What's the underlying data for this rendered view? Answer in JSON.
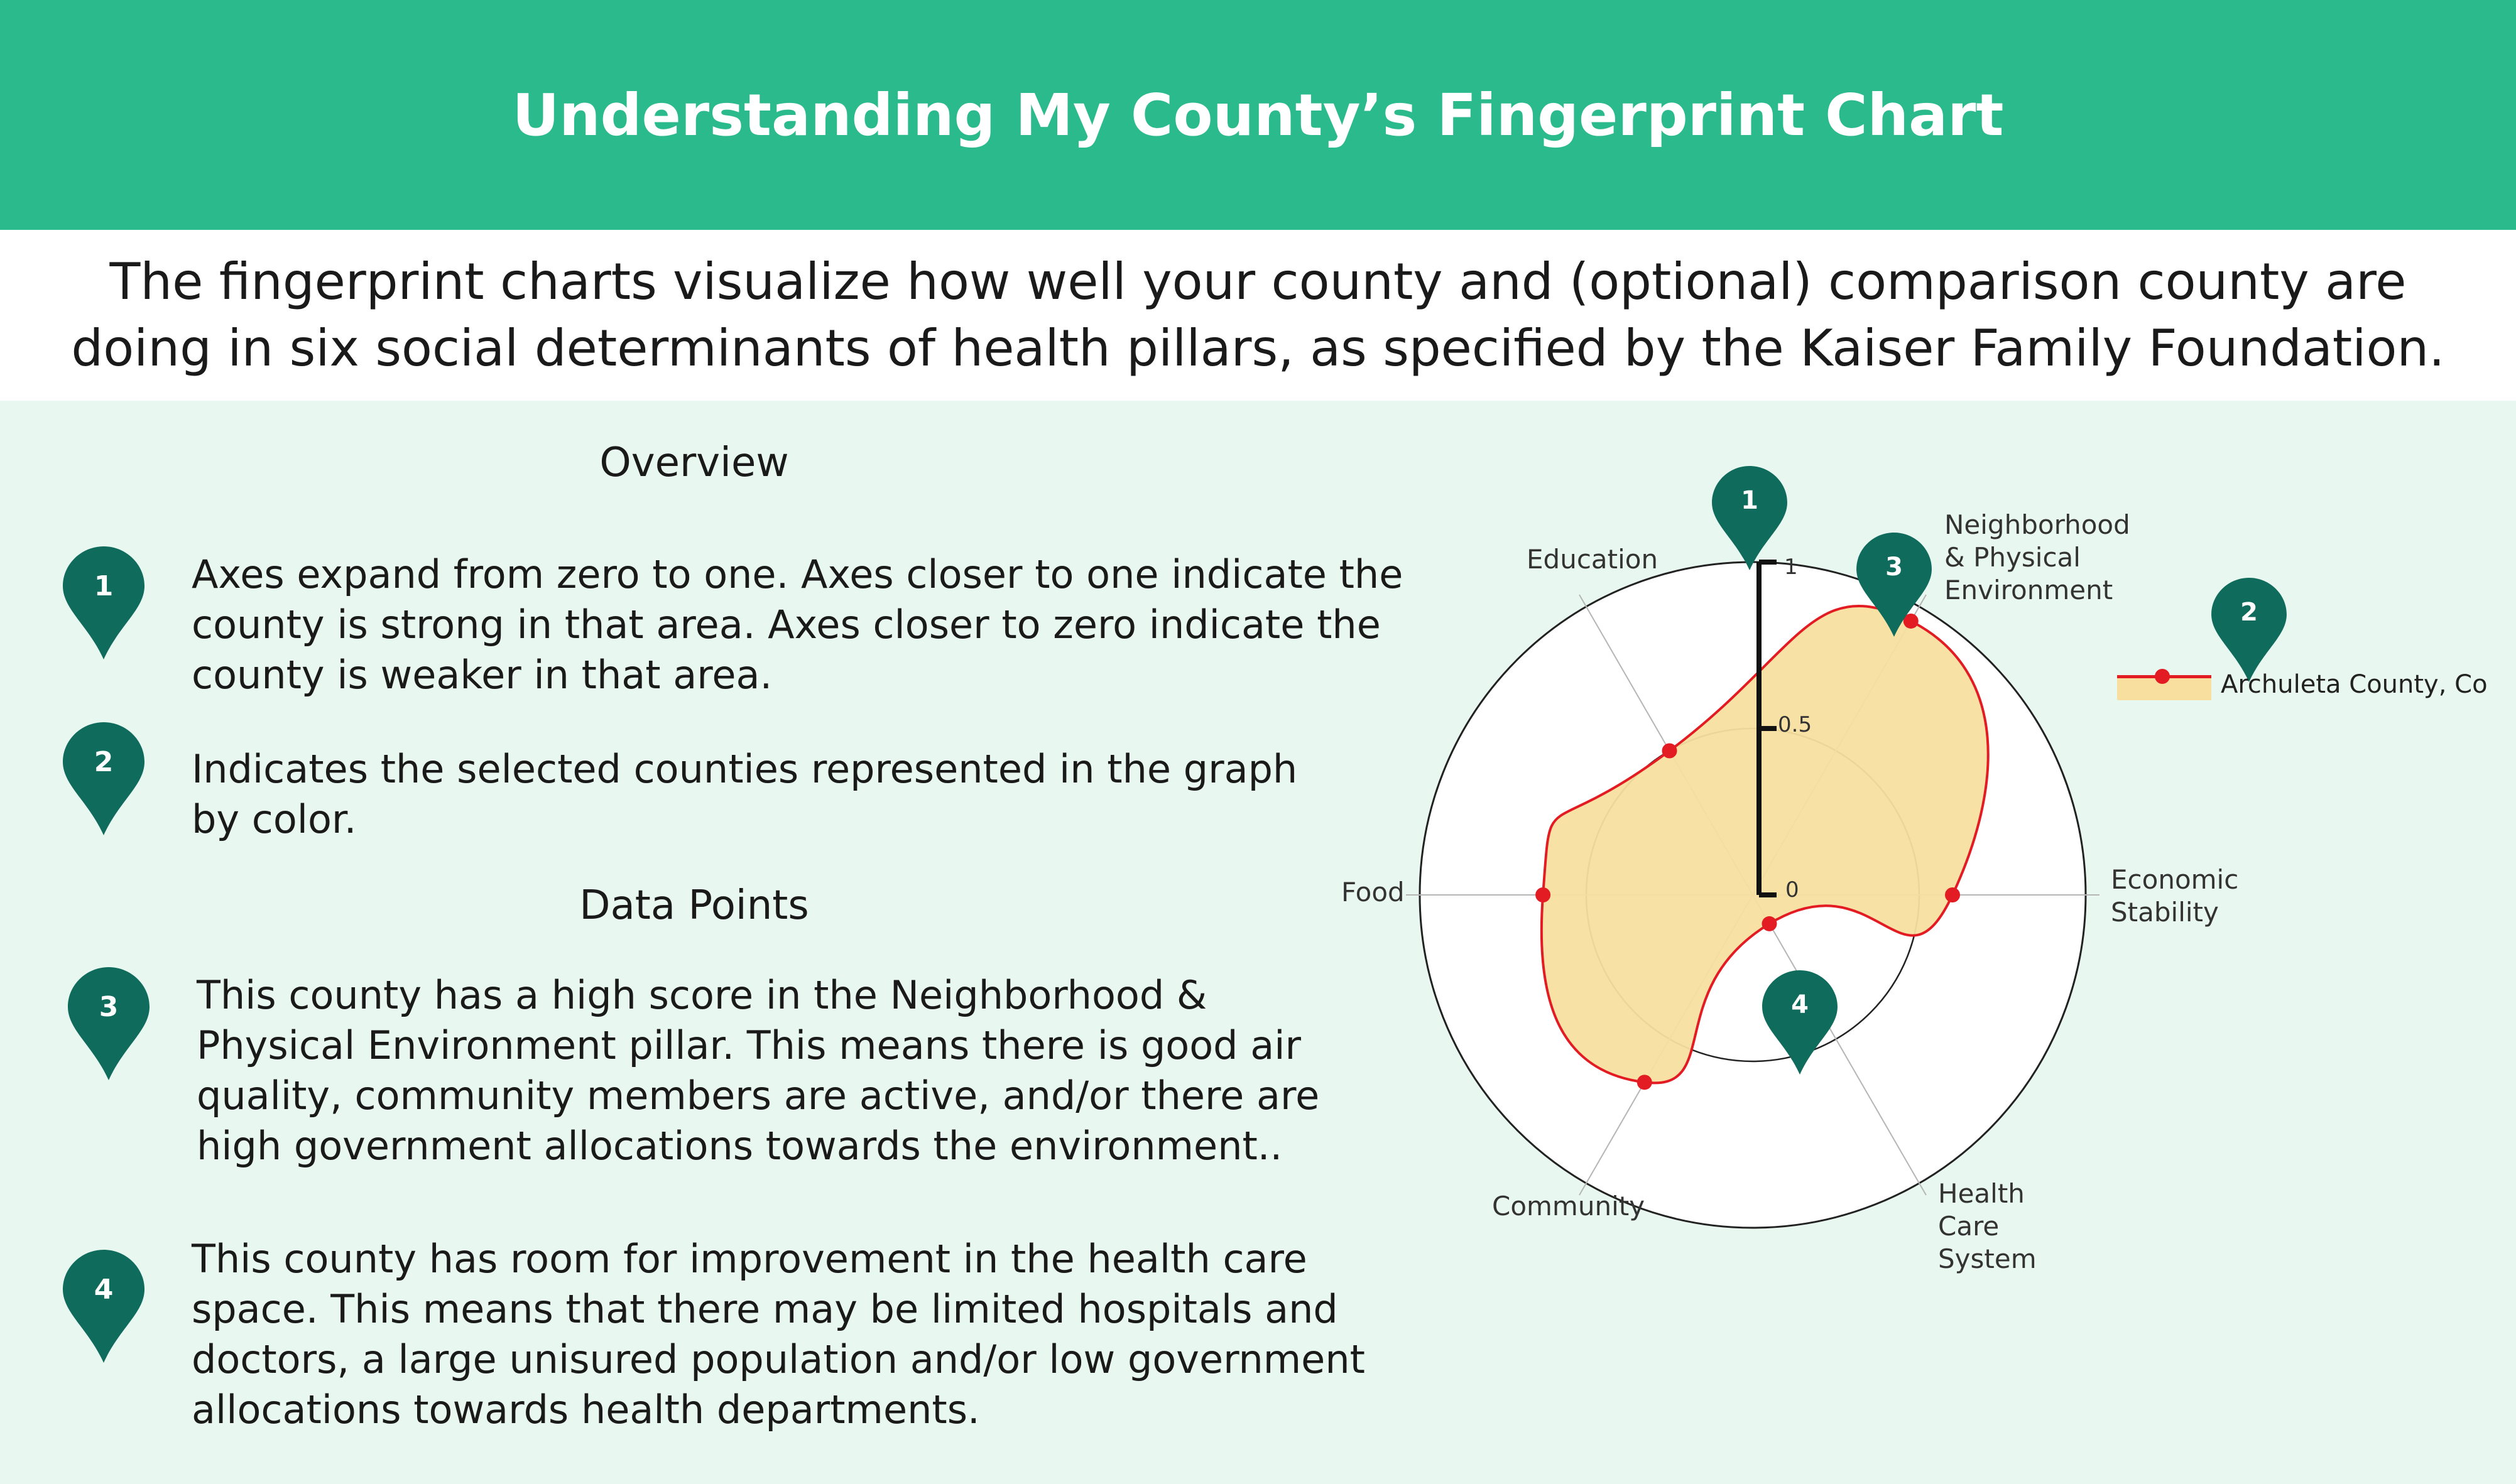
{
  "header": {
    "title": "Understanding My County’s Fingerprint Chart"
  },
  "intro": {
    "text_line1": "The fingerprint charts visualize how well your county and (optional) comparison county are",
    "text_line2": "doing in six social determinants of health pillars, as specified by the Kaiser Family Foundation."
  },
  "overview": {
    "title": "Overview",
    "items": [
      {
        "number": "1",
        "lines": [
          "Axes expand from zero to one.  Axes closer to one indicate the",
          "county is strong in that area.  Axes closer to zero indicate the",
          "county is weaker in that area."
        ]
      },
      {
        "number": "2",
        "lines": [
          "Indicates the selected counties represented in the graph",
          "by color."
        ]
      }
    ]
  },
  "data_points": {
    "title": "Data Points",
    "items": [
      {
        "number": "3",
        "lines": [
          "This county has a high score in the Neighborhood &",
          "Physical Environment pillar.  This means there is good air",
          "quality, community members are active, and/or there are",
          "high government allocations towards the environment.."
        ]
      },
      {
        "number": "4",
        "lines": [
          "This county has room for improvement in the health care",
          "space.  This means that there may be limited hospitals and",
          "doctors, a large unisured population and/or low government",
          "allocations towards health departments."
        ]
      }
    ]
  },
  "colors": {
    "header_bg": "#2bba8c",
    "main_bg": "#e9f7f1",
    "pin": "#0f6b5c",
    "series_line": "#e31b23",
    "series_fill": "#f8dfa0"
  },
  "chart_data": {
    "type": "radar",
    "axes": [
      "Neighborhood & Physical Environment",
      "Economic Stability",
      "Health Care System",
      "Community",
      "Food",
      "Education"
    ],
    "axis_label_lines": [
      [
        "Neighborhood",
        "& Physical",
        "Environment"
      ],
      [
        "Economic",
        "Stability"
      ],
      [
        "Health",
        "Care",
        "System"
      ],
      [
        "Community"
      ],
      [
        "Food"
      ],
      [
        "Education"
      ]
    ],
    "rlim": [
      0,
      1
    ],
    "ticks": [
      "0",
      "0.5",
      "1"
    ],
    "series": [
      {
        "name": "Archuleta County, Co",
        "values": [
          0.95,
          0.6,
          0.1,
          0.65,
          0.63,
          0.5
        ]
      }
    ],
    "legend": "right",
    "annotation_markers": [
      "1",
      "2",
      "3",
      "4"
    ]
  }
}
